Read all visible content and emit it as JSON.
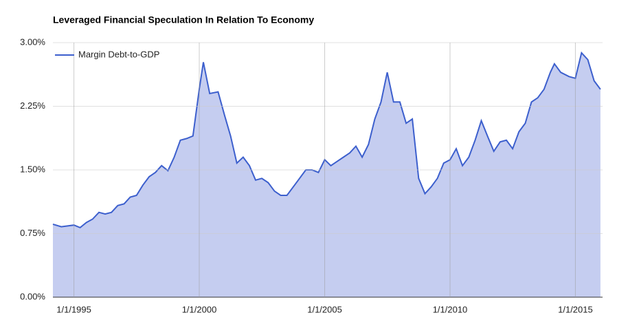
{
  "chart_data": {
    "type": "area",
    "title": "Leveraged Financial Speculation In Relation To Economy",
    "x": [
      "1994-03-01",
      "1994-07-01",
      "1995-01-01",
      "1995-04-01",
      "1995-07-01",
      "1995-10-01",
      "1996-01-01",
      "1996-04-01",
      "1996-07-01",
      "1996-10-01",
      "1997-01-01",
      "1997-04-01",
      "1997-07-01",
      "1997-10-01",
      "1998-01-01",
      "1998-04-01",
      "1998-07-01",
      "1998-10-01",
      "1999-01-01",
      "1999-04-01",
      "1999-07-01",
      "1999-10-01",
      "2000-01-01",
      "2000-03-01",
      "2000-06-01",
      "2000-10-01",
      "2001-01-01",
      "2001-04-01",
      "2001-07-01",
      "2001-10-01",
      "2002-01-01",
      "2002-04-01",
      "2002-07-01",
      "2002-10-01",
      "2003-01-01",
      "2003-04-01",
      "2003-07-01",
      "2003-10-01",
      "2004-01-01",
      "2004-04-01",
      "2004-07-01",
      "2004-10-01",
      "2005-01-01",
      "2005-04-01",
      "2005-07-01",
      "2005-10-01",
      "2006-01-01",
      "2006-04-01",
      "2006-07-01",
      "2006-10-01",
      "2007-01-01",
      "2007-04-01",
      "2007-07-01",
      "2007-10-01",
      "2008-01-01",
      "2008-04-01",
      "2008-07-01",
      "2008-10-01",
      "2009-01-01",
      "2009-04-01",
      "2009-07-01",
      "2009-10-01",
      "2010-01-01",
      "2010-04-01",
      "2010-07-01",
      "2010-10-01",
      "2011-01-01",
      "2011-04-01",
      "2011-07-01",
      "2011-10-01",
      "2012-01-01",
      "2012-04-01",
      "2012-07-01",
      "2012-10-01",
      "2013-01-01",
      "2013-04-01",
      "2013-07-01",
      "2013-10-01",
      "2014-01-01",
      "2014-03-01",
      "2014-06-01",
      "2014-10-01",
      "2015-01-01",
      "2015-04-01",
      "2015-07-01",
      "2015-10-01",
      "2016-01-01"
    ],
    "series": [
      {
        "name": "Margin Debt-to-GDP",
        "color": "#3c5fcd",
        "fill": "#c5cdf0",
        "values": [
          0.86,
          0.83,
          0.85,
          0.82,
          0.88,
          0.92,
          1.0,
          0.98,
          1.0,
          1.08,
          1.1,
          1.18,
          1.2,
          1.32,
          1.42,
          1.47,
          1.55,
          1.49,
          1.65,
          1.85,
          1.87,
          1.9,
          2.45,
          2.77,
          2.4,
          2.42,
          2.15,
          1.9,
          1.58,
          1.65,
          1.55,
          1.38,
          1.4,
          1.35,
          1.25,
          1.2,
          1.2,
          1.3,
          1.4,
          1.5,
          1.5,
          1.47,
          1.62,
          1.55,
          1.6,
          1.65,
          1.7,
          1.78,
          1.65,
          1.8,
          2.1,
          2.3,
          2.65,
          2.3,
          2.3,
          2.05,
          2.1,
          1.4,
          1.22,
          1.3,
          1.4,
          1.58,
          1.62,
          1.75,
          1.55,
          1.65,
          1.85,
          2.08,
          1.9,
          1.72,
          1.83,
          1.85,
          1.75,
          1.95,
          2.05,
          2.3,
          2.35,
          2.45,
          2.65,
          2.75,
          2.65,
          2.6,
          2.58,
          2.88,
          2.8,
          2.55,
          2.45
        ]
      }
    ],
    "xlim": [
      "1994-03-01",
      "2016-02-01"
    ],
    "xticks": [
      {
        "value": "1995-01-01",
        "label": "1/1/1995"
      },
      {
        "value": "2000-01-01",
        "label": "1/1/2000"
      },
      {
        "value": "2005-01-01",
        "label": "1/1/2005"
      },
      {
        "value": "2010-01-01",
        "label": "1/1/2010"
      },
      {
        "value": "2015-01-01",
        "label": "1/1/2015"
      }
    ],
    "ylim": [
      0,
      3
    ],
    "yticks": [
      {
        "value": 0,
        "label": "0.00%"
      },
      {
        "value": 0.75,
        "label": "0.75%"
      },
      {
        "value": 1.5,
        "label": "1.50%"
      },
      {
        "value": 2.25,
        "label": "2.25%"
      },
      {
        "value": 3,
        "label": "3.00%"
      }
    ],
    "grid": true,
    "legend": "top-left"
  }
}
